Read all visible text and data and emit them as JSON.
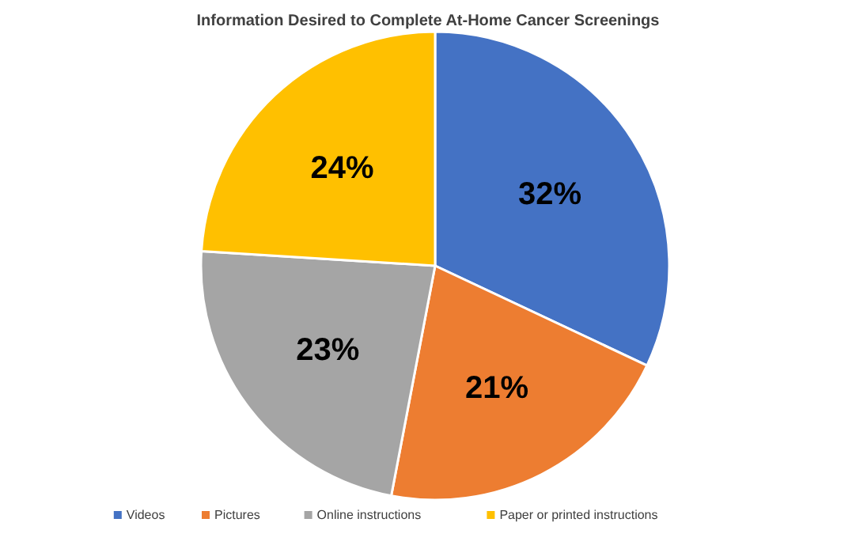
{
  "chart_data": {
    "type": "pie",
    "title": "Information Desired to Complete At-Home Cancer Screenings",
    "categories": [
      "Videos",
      "Pictures",
      "Online instructions",
      "Paper or printed instructions"
    ],
    "values": [
      32,
      21,
      23,
      24
    ],
    "colors": [
      "#4472c4",
      "#ed7d31",
      "#a5a5a5",
      "#ffc000"
    ],
    "value_labels": [
      "32%",
      "21%",
      "23%",
      "24%"
    ],
    "legend": "bottom"
  }
}
